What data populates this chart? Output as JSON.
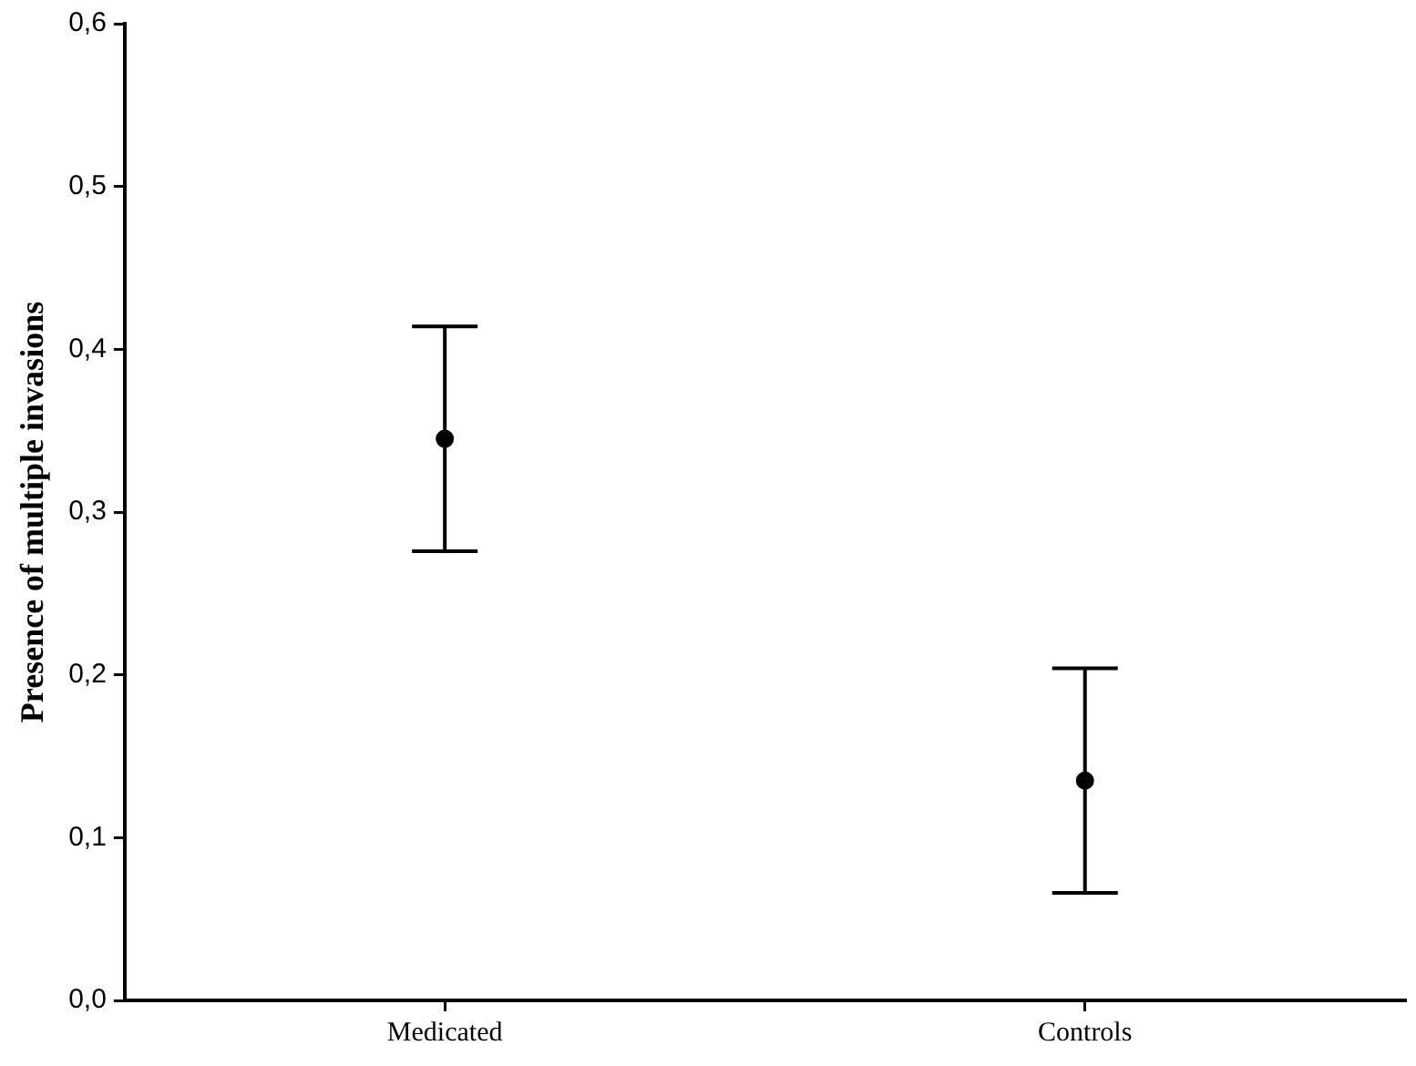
{
  "chart_data": {
    "type": "scatter",
    "ylabel": "Presence of multiple invasions",
    "categories": [
      "Medicated",
      "Controls"
    ],
    "series": [
      {
        "color": "#000000",
        "values": [
          0.345,
          0.135
        ],
        "errors": [
          0.069,
          0.069
        ]
      }
    ],
    "ylim": [
      0,
      0.6
    ],
    "yticks": [
      {
        "value": 0,
        "label": "0,0"
      },
      {
        "value": 0.1,
        "label": "0,1"
      },
      {
        "value": 0.2,
        "label": "0,2"
      },
      {
        "value": 0.3,
        "label": "0,3"
      },
      {
        "value": 0.4,
        "label": "0,4"
      },
      {
        "value": 0.5,
        "label": "0,5"
      },
      {
        "value": 0.6,
        "label": "0,6"
      }
    ],
    "grid": false,
    "legend": false,
    "marker": "circle"
  }
}
